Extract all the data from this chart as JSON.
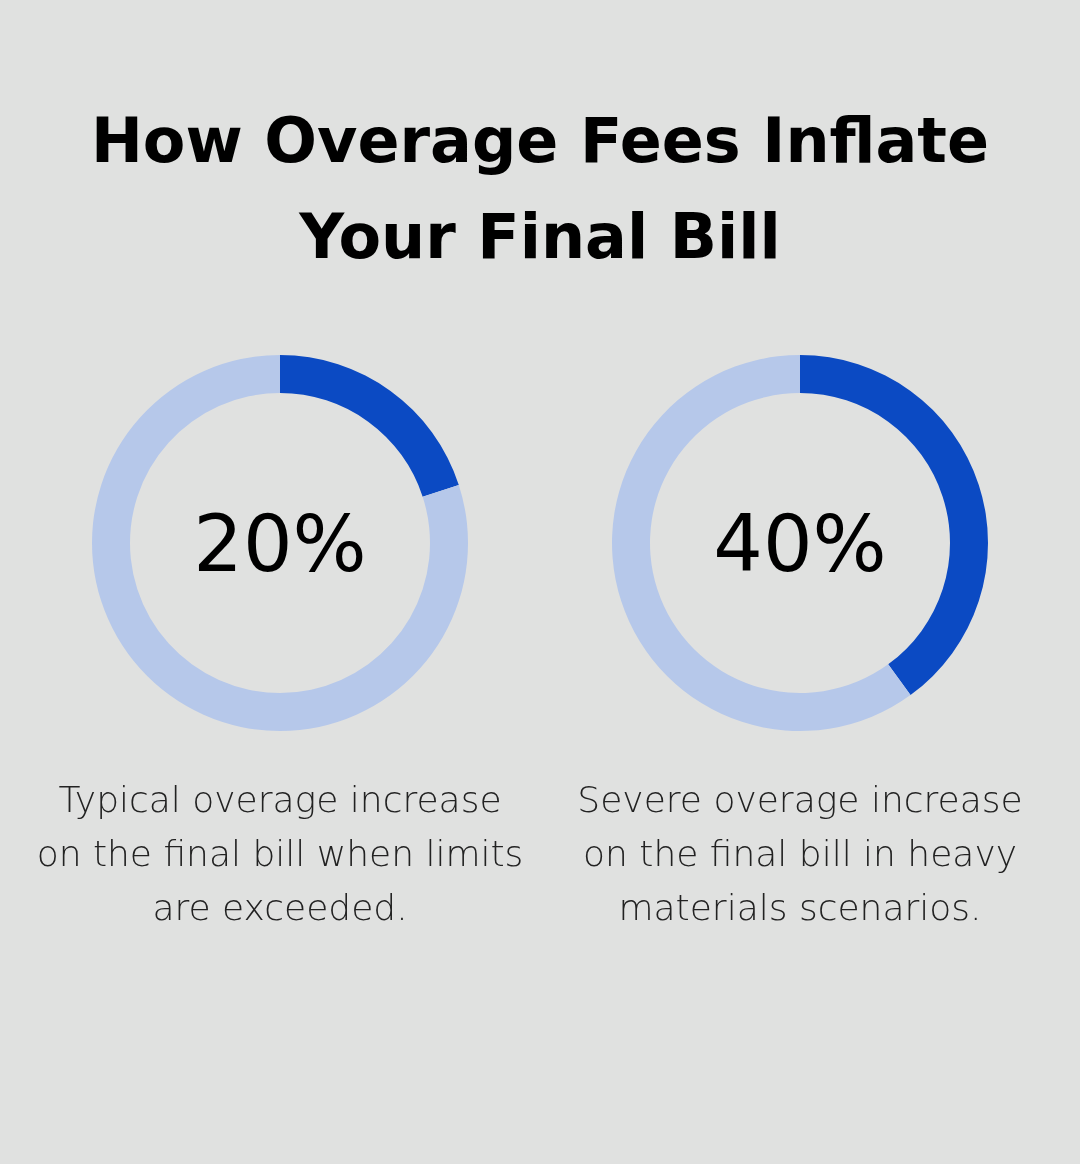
{
  "chart_data": [
    {
      "type": "donut",
      "title": "How Overage Fees Inflate Your Final Bill",
      "categories": [
        null,
        null
      ],
      "values": [
        20,
        80
      ],
      "colors": [
        "#0b4ac3",
        "#b6c8ea"
      ],
      "annotations": [
        "20%",
        "Typical overage increase on the final bill when limits are exceeded."
      ]
    },
    {
      "type": "donut",
      "categories": [
        null,
        null
      ],
      "values": [
        40,
        60
      ],
      "colors": [
        "#0b4ac3",
        "#b6c8ea"
      ],
      "annotations": [
        "40%",
        "Severe overage increase on the final bill in heavy materials scenarios."
      ]
    }
  ]
}
